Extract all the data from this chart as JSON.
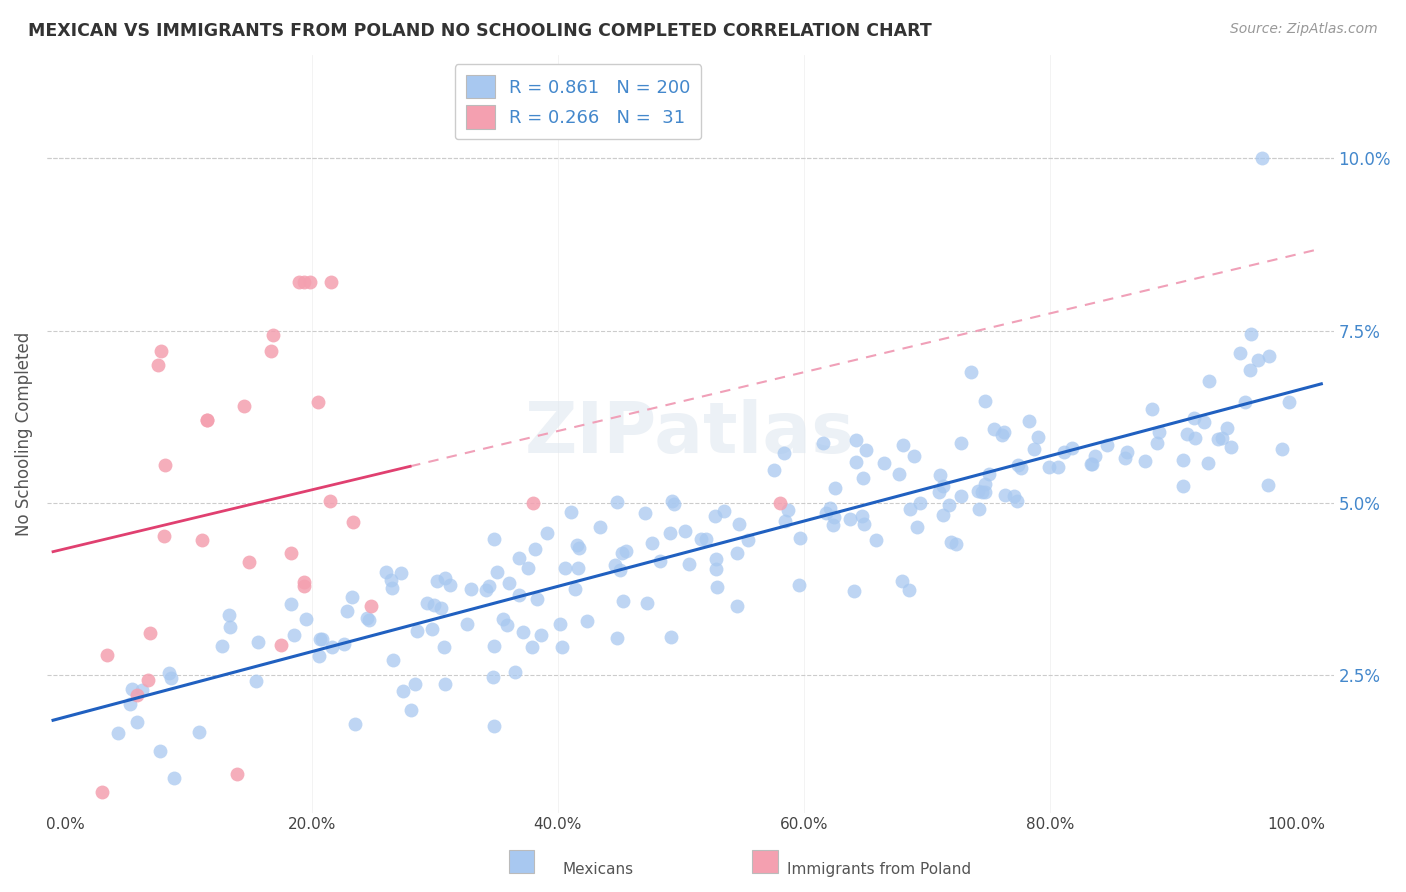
{
  "title": "MEXICAN VS IMMIGRANTS FROM POLAND NO SCHOOLING COMPLETED CORRELATION CHART",
  "source": "Source: ZipAtlas.com",
  "ylabel": "No Schooling Completed",
  "watermark": "ZIPatlas",
  "blue_R": 0.861,
  "blue_N": 200,
  "pink_R": 0.266,
  "pink_N": 31,
  "blue_color": "#A8C8F0",
  "pink_color": "#F4A0B0",
  "blue_line_color": "#2060C0",
  "pink_line_color": "#E04070",
  "pink_dash_color": "#F0A0B8",
  "legend_label_blue": "Mexicans",
  "legend_label_pink": "Immigrants from Poland",
  "x_tick_labels": [
    "0.0%",
    "20.0%",
    "40.0%",
    "60.0%",
    "80.0%",
    "100.0%"
  ],
  "y_tick_labels": [
    "2.5%",
    "5.0%",
    "7.5%",
    "10.0%"
  ],
  "y_tick_values": [
    0.025,
    0.05,
    0.075,
    0.1
  ],
  "x_tick_values": [
    0.0,
    0.2,
    0.4,
    0.6,
    0.8,
    1.0
  ],
  "tick_color": "#4488CC",
  "title_color": "#333333",
  "ylabel_color": "#555555",
  "grid_color": "#CCCCCC",
  "source_color": "#999999"
}
